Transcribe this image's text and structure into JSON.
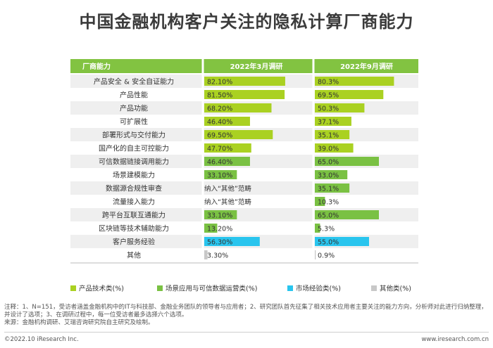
{
  "title": "中国金融机构客户关注的隐私计算厂商能力",
  "colors": {
    "header_green": "#82c341",
    "lime": "#aad122",
    "green": "#7ac143",
    "cyan": "#29c5ee",
    "grey": "#c8c8c8",
    "row_alt": "#efefef"
  },
  "chart_data": {
    "type": "bar",
    "row_header": "厂商能力",
    "column_headers": [
      "2022年3月调研",
      "2022年9月调研"
    ],
    "categories": [
      "产品安全 & 安全自证能力",
      "产品性能",
      "产品功能",
      "可扩展性",
      "部署形式与交付能力",
      "国产化的自主可控能力",
      "可信数据链接调用能力",
      "场景建模能力",
      "数据源合规性审查",
      "流量接入能力",
      "跨平台互联互通能力",
      "区块链等技术辅助能力",
      "客户服务经验",
      "其他"
    ],
    "series": [
      {
        "name": "2022年3月调研",
        "values": [
          82.1,
          81.5,
          68.2,
          46.4,
          69.5,
          47.7,
          46.4,
          33.1,
          null,
          null,
          33.1,
          13.2,
          56.3,
          3.3
        ],
        "labels": [
          "82.10%",
          "81.50%",
          "68.20%",
          "46.40%",
          "69.50%",
          "47.70%",
          "46.40%",
          "33.10%",
          "纳入“其他”范畴",
          "纳入“其他”范畴",
          "33.10%",
          "13.20%",
          "56.30%",
          "3.30%"
        ],
        "groups": [
          "lime",
          "lime",
          "lime",
          "lime",
          "lime",
          "lime",
          "green",
          "green",
          "none",
          "none",
          "green",
          "green",
          "cyan",
          "grey"
        ]
      },
      {
        "name": "2022年9月调研",
        "values": [
          80.3,
          69.5,
          50.3,
          37.1,
          35.1,
          39.0,
          65.0,
          33.0,
          35.1,
          10.3,
          65.0,
          5.3,
          55.0,
          0.9
        ],
        "labels": [
          "80.3%",
          "69.5%",
          "50.3%",
          "37.1%",
          "35.1%",
          "39.0%",
          "65.0%",
          "33.0%",
          "35.1%",
          "10.3%",
          "65.0%",
          "5.3%",
          "55.0%",
          "0.9%"
        ],
        "groups": [
          "lime",
          "lime",
          "lime",
          "lime",
          "lime",
          "lime",
          "green",
          "green",
          "green",
          "green",
          "green",
          "green",
          "cyan",
          "grey"
        ]
      }
    ],
    "legend": [
      {
        "label": "产品技术类(%)",
        "group": "lime"
      },
      {
        "label": "场景应用与可信数据运营类(%)",
        "group": "green"
      },
      {
        "label": "市场经验类(%)",
        "group": "cyan"
      },
      {
        "label": "其他类(%)",
        "group": "grey"
      }
    ],
    "legend_position": "bottom"
  },
  "notes": "注释：1、N=151，受访者涵盖金融机构中的IT与科技部、金融业务团队的领导者与应用者；2、研究团队首先征集了相关技术应用者主要关注的能力方向，分析师对此进行归纳整理，并设计了选项；3、在调研过程中，每一位受访者最多选择六个选项。",
  "source": "来源：金融机构调研、艾瑞咨询研究院自主研究及绘制。",
  "footer": {
    "left": "©2022.10 iResearch Inc.",
    "right": "www.iresearch.com.cn"
  }
}
